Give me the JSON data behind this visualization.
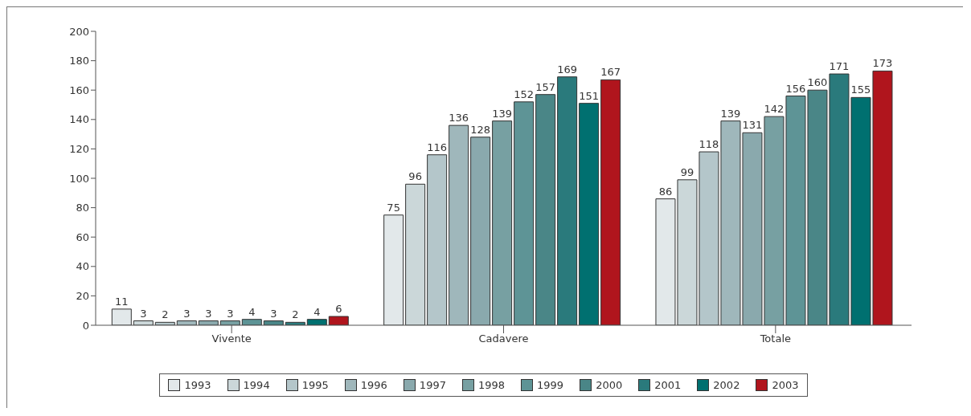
{
  "chart_data": {
    "type": "bar",
    "categories": [
      "Vivente",
      "Cadavere",
      "Totale"
    ],
    "series": [
      {
        "name": "1993",
        "color": "#e2e8ea",
        "values": [
          11,
          75,
          86
        ]
      },
      {
        "name": "1994",
        "color": "#cbd7d9",
        "values": [
          3,
          96,
          99
        ]
      },
      {
        "name": "1995",
        "color": "#b4c6ca",
        "values": [
          2,
          116,
          118
        ]
      },
      {
        "name": "1996",
        "color": "#9fb7bb",
        "values": [
          3,
          136,
          139
        ]
      },
      {
        "name": "1997",
        "color": "#8aa9ad",
        "values": [
          3,
          128,
          131
        ]
      },
      {
        "name": "1998",
        "color": "#77a0a2",
        "values": [
          3,
          139,
          142
        ]
      },
      {
        "name": "1999",
        "color": "#5e9496",
        "values": [
          4,
          152,
          156
        ]
      },
      {
        "name": "2000",
        "color": "#4a8687",
        "values": [
          3,
          157,
          160
        ]
      },
      {
        "name": "2001",
        "color": "#2a7a7c",
        "values": [
          2,
          169,
          171
        ]
      },
      {
        "name": "2002",
        "color": "#007070",
        "values": [
          4,
          151,
          155
        ]
      },
      {
        "name": "2003",
        "color": "#b0151d",
        "values": [
          6,
          167,
          173
        ]
      }
    ],
    "ylim": [
      0,
      200
    ],
    "yticks": [
      0,
      20,
      40,
      60,
      80,
      100,
      120,
      140,
      160,
      180,
      200
    ],
    "grid": false,
    "legend": "bottom",
    "data_labels": true
  }
}
